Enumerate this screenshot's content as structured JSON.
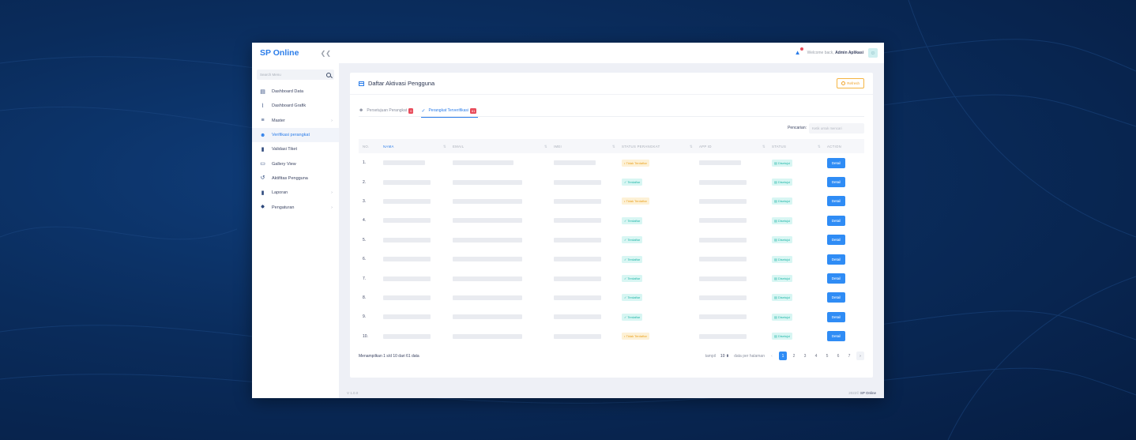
{
  "sidebar": {
    "brand": "SP Online",
    "search_placeholder": "Search Menu",
    "items": [
      {
        "label": "Dashboard Data",
        "icon": "table-icon",
        "glyph": "▤",
        "chevron": false,
        "active": false
      },
      {
        "label": "Dashboard Grafik",
        "icon": "chart-icon",
        "glyph": "⌇",
        "chevron": false,
        "active": false
      },
      {
        "label": "Master",
        "icon": "database-icon",
        "glyph": "≡",
        "chevron": true,
        "active": false
      },
      {
        "label": "Verifikasi perangkat",
        "icon": "user-check-icon",
        "glyph": "☻",
        "chevron": false,
        "active": true
      },
      {
        "label": "Validasi Tiket",
        "icon": "file-icon",
        "glyph": "▮",
        "chevron": false,
        "active": false
      },
      {
        "label": "Gallery View",
        "icon": "image-icon",
        "glyph": "▭",
        "chevron": false,
        "active": false
      },
      {
        "label": "Aktifitas Pengguna",
        "icon": "history-icon",
        "glyph": "↺",
        "chevron": false,
        "active": false
      },
      {
        "label": "Laporan",
        "icon": "document-icon",
        "glyph": "▮",
        "chevron": true,
        "active": false
      },
      {
        "label": "Pengaturan",
        "icon": "gear-icon",
        "glyph": "✸",
        "chevron": true,
        "active": false
      }
    ]
  },
  "topbar": {
    "welcome_prefix": "Welcome back,",
    "user_name": "Admin Aplikasi"
  },
  "card": {
    "title": "Daftar Aktivasi Pengguna",
    "refresh_label": "Refresh",
    "tabs": [
      {
        "label": "Persetujuan Perangkat",
        "badge": "0",
        "active": false
      },
      {
        "label": "Perangkat Terverifikasi",
        "badge": "61",
        "active": true
      }
    ],
    "search_label": "Pencarian:",
    "search_placeholder": "Ketik untuk mencari",
    "columns": [
      "NO.",
      "NAMA",
      "EMAIL",
      "IMEI",
      "STATUS PERANGKAT",
      "APP ID",
      "STATUS",
      "ACTION"
    ],
    "rows": [
      {
        "no": "1.",
        "status_perangkat": "Tidak Terdaftar",
        "sp_type": "warn",
        "status": "Disetujui",
        "action": "Detail"
      },
      {
        "no": "2.",
        "status_perangkat": "Terdaftar",
        "sp_type": "ok",
        "status": "Disetujui",
        "action": "Detail"
      },
      {
        "no": "3.",
        "status_perangkat": "Tidak Terdaftar",
        "sp_type": "warn",
        "status": "Disetujui",
        "action": "Detail"
      },
      {
        "no": "4.",
        "status_perangkat": "Terdaftar",
        "sp_type": "ok",
        "status": "Disetujui",
        "action": "Detail"
      },
      {
        "no": "5.",
        "status_perangkat": "Terdaftar",
        "sp_type": "ok",
        "status": "Disetujui",
        "action": "Detail"
      },
      {
        "no": "6.",
        "status_perangkat": "Terdaftar",
        "sp_type": "ok",
        "status": "Disetujui",
        "action": "Detail"
      },
      {
        "no": "7.",
        "status_perangkat": "Terdaftar",
        "sp_type": "ok",
        "status": "Disetujui",
        "action": "Detail"
      },
      {
        "no": "8.",
        "status_perangkat": "Terdaftar",
        "sp_type": "ok",
        "status": "Disetujui",
        "action": "Detail"
      },
      {
        "no": "9.",
        "status_perangkat": "Terdaftar",
        "sp_type": "ok",
        "status": "Disetujui",
        "action": "Detail"
      },
      {
        "no": "10.",
        "status_perangkat": "Tidak Terdaftar",
        "sp_type": "warn",
        "status": "Disetujui",
        "action": "Detail"
      }
    ],
    "showing": "Menampilkan 1 s/d 10 dari 61 data",
    "pager": {
      "show_label": "tampil",
      "per_page": "10",
      "per_page_suffix": "data per halaman",
      "prev": "‹",
      "pages": [
        "1",
        "2",
        "3",
        "4",
        "5",
        "6",
        "7"
      ],
      "current": "1",
      "next": "›"
    }
  },
  "footer": {
    "version": "V 1.0.0",
    "copyright_year": "2022©",
    "copyright_brand": "SP Online"
  },
  "colors": {
    "accent": "#2b7de9",
    "success": "#1fb6a8",
    "warning": "#eba21f",
    "danger": "#e84b5a"
  }
}
